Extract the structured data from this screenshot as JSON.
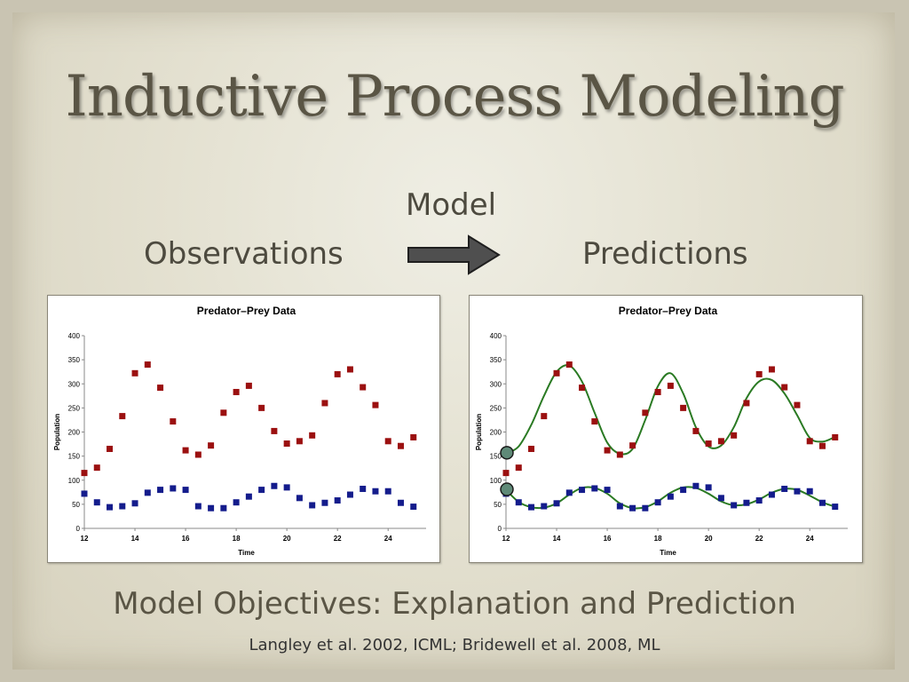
{
  "slide": {
    "title": "Inductive Process Modeling",
    "labels": {
      "observations": "Observations",
      "model": "Model",
      "predictions": "Predictions"
    },
    "objectives": "Model Objectives:  Explanation and Prediction",
    "citation": "Langley et al. 2002, ICML; Bridewell et al. 2008, ML"
  },
  "colors": {
    "predator": "#9b1010",
    "prey": "#141c8c",
    "model_curve": "#2a7a23",
    "initial_marker": "#5f8a78"
  },
  "chart_data": [
    {
      "type": "scatter",
      "title": "Predator–Prey Data",
      "xlabel": "Time",
      "ylabel": "Population",
      "xlim": [
        12,
        25.5
      ],
      "ylim": [
        0,
        400
      ],
      "xticks": [
        "12",
        "14",
        "16",
        "18",
        "20",
        "22",
        "24"
      ],
      "yticks": [
        "0",
        "50",
        "100",
        "150",
        "200",
        "250",
        "300",
        "350",
        "400"
      ],
      "grid": false,
      "series": [
        {
          "role": "predator",
          "x": [
            12,
            12.5,
            13,
            13.5,
            14,
            14.5,
            15,
            15.5,
            16,
            16.5,
            17,
            17.5,
            18,
            18.5,
            19,
            19.5,
            20,
            20.5,
            21,
            21.5,
            22,
            22.5,
            23,
            23.5,
            24,
            24.5,
            25
          ],
          "y": [
            115,
            126,
            165,
            233,
            322,
            340,
            292,
            222,
            162,
            153,
            172,
            240,
            283,
            296,
            250,
            202,
            176,
            181,
            193,
            260,
            320,
            330,
            293,
            256,
            181,
            171,
            189
          ]
        },
        {
          "role": "prey",
          "x": [
            12,
            12.5,
            13,
            13.5,
            14,
            14.5,
            15,
            15.5,
            16,
            16.5,
            17,
            17.5,
            18,
            18.5,
            19,
            19.5,
            20,
            20.5,
            21,
            21.5,
            22,
            22.5,
            23,
            23.5,
            24,
            24.5,
            25
          ],
          "y": [
            72,
            54,
            44,
            46,
            52,
            74,
            80,
            83,
            80,
            46,
            42,
            42,
            54,
            66,
            80,
            88,
            85,
            63,
            48,
            53,
            58,
            70,
            82,
            77,
            77,
            53,
            45
          ]
        }
      ]
    },
    {
      "type": "scatter",
      "title": "Predator–Prey Data",
      "xlabel": "Time",
      "ylabel": "Population",
      "xlim": [
        12,
        25.5
      ],
      "ylim": [
        0,
        400
      ],
      "xticks": [
        "12",
        "14",
        "16",
        "18",
        "20",
        "22",
        "24"
      ],
      "yticks": [
        "0",
        "50",
        "100",
        "150",
        "200",
        "250",
        "300",
        "350",
        "400"
      ],
      "grid": false,
      "series": [
        {
          "role": "predator",
          "x": [
            12,
            12.5,
            13,
            13.5,
            14,
            14.5,
            15,
            15.5,
            16,
            16.5,
            17,
            17.5,
            18,
            18.5,
            19,
            19.5,
            20,
            20.5,
            21,
            21.5,
            22,
            22.5,
            23,
            23.5,
            24,
            24.5,
            25
          ],
          "y": [
            115,
            126,
            165,
            233,
            322,
            340,
            292,
            222,
            162,
            153,
            172,
            240,
            283,
            296,
            250,
            202,
            176,
            181,
            193,
            260,
            320,
            330,
            293,
            256,
            181,
            171,
            189
          ]
        },
        {
          "role": "prey",
          "x": [
            12,
            12.5,
            13,
            13.5,
            14,
            14.5,
            15,
            15.5,
            16,
            16.5,
            17,
            17.5,
            18,
            18.5,
            19,
            19.5,
            20,
            20.5,
            21,
            21.5,
            22,
            22.5,
            23,
            23.5,
            24,
            24.5,
            25
          ],
          "y": [
            72,
            54,
            44,
            46,
            52,
            74,
            80,
            83,
            80,
            46,
            42,
            42,
            54,
            66,
            80,
            88,
            85,
            63,
            48,
            53,
            58,
            70,
            82,
            77,
            77,
            53,
            45
          ]
        },
        {
          "role": "predator-model",
          "kind": "line",
          "x": [
            12,
            12.5,
            13,
            13.5,
            14,
            14.5,
            15,
            15.5,
            16,
            16.5,
            17,
            17.5,
            18,
            18.5,
            19,
            19.5,
            20,
            20.5,
            21,
            21.5,
            22,
            22.5,
            23,
            23.5,
            24,
            24.5,
            25
          ],
          "y": [
            155,
            170,
            215,
            275,
            325,
            338,
            305,
            240,
            178,
            155,
            165,
            225,
            295,
            322,
            280,
            210,
            170,
            172,
            210,
            270,
            305,
            308,
            280,
            235,
            188,
            180,
            190
          ]
        },
        {
          "role": "prey-model",
          "kind": "line",
          "x": [
            12,
            12.5,
            13,
            13.5,
            14,
            14.5,
            15,
            15.5,
            16,
            16.5,
            17,
            17.5,
            18,
            18.5,
            19,
            19.5,
            20,
            20.5,
            21,
            21.5,
            22,
            22.5,
            23,
            23.5,
            24,
            24.5,
            25
          ],
          "y": [
            80,
            55,
            44,
            43,
            52,
            70,
            84,
            84,
            72,
            52,
            42,
            44,
            56,
            74,
            85,
            84,
            72,
            56,
            48,
            50,
            60,
            74,
            82,
            80,
            68,
            54,
            45
          ]
        },
        {
          "role": "initial-conditions",
          "kind": "marker",
          "x": [
            12,
            12
          ],
          "y": [
            157,
            81
          ]
        }
      ]
    }
  ]
}
